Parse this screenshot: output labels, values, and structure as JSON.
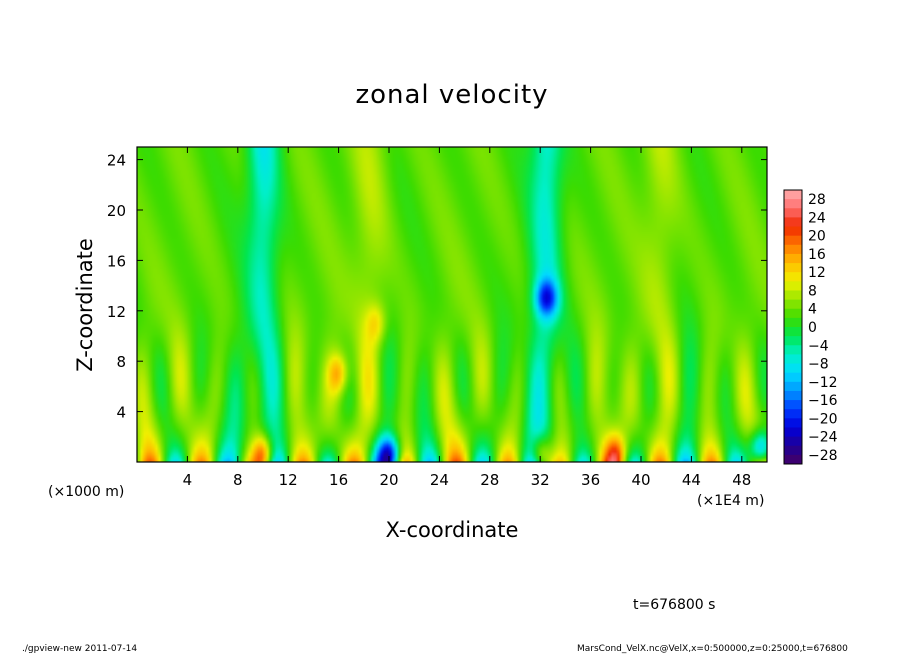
{
  "chart_data": {
    "type": "heatmap",
    "title": "zonal velocity",
    "xlabel": "X-coordinate",
    "ylabel": "Z-coordinate",
    "x_unit_left": "(×1000 m)",
    "x_unit_right": "(×1E4 m)",
    "xlim": [
      0,
      50
    ],
    "ylim": [
      0,
      25
    ],
    "x_ticks": [
      "4",
      "8",
      "12",
      "16",
      "20",
      "24",
      "28",
      "32",
      "36",
      "40",
      "44",
      "48"
    ],
    "y_ticks": [
      "4",
      "8",
      "12",
      "16",
      "20",
      "24"
    ],
    "colorbar": {
      "labels": [
        "28",
        "24",
        "20",
        "16",
        "12",
        "8",
        "4",
        "0",
        "−4",
        "−8",
        "−12",
        "−16",
        "−20",
        "−24",
        "−28"
      ],
      "min": -30,
      "max": 30
    },
    "features": {
      "cyan_columns_x": [
        10,
        32.5
      ],
      "warm_columns_x": [
        18.5,
        41.5
      ],
      "hot_spots": [
        {
          "x": 16,
          "z": 7,
          "value": 14
        },
        {
          "x": 19,
          "z": 11,
          "value": 10
        },
        {
          "x": 10,
          "z": 0.5,
          "value": 20
        },
        {
          "x": 32,
          "z": 0.5,
          "value": 18
        },
        {
          "x": 38,
          "z": 0.5,
          "value": 16
        }
      ],
      "cold_spots": [
        {
          "x": 32.5,
          "z": 13,
          "value": -14
        },
        {
          "x": 20,
          "z": 0.5,
          "value": -20
        },
        {
          "x": 49.5,
          "z": 1,
          "value": -18
        }
      ]
    }
  },
  "time_label": "t=676800 s",
  "footer": {
    "left": "./gpview-new   2011-07-14",
    "right": "MarsCond_VelX.nc@VelX,x=0:500000,z=0:25000,t=676800"
  }
}
